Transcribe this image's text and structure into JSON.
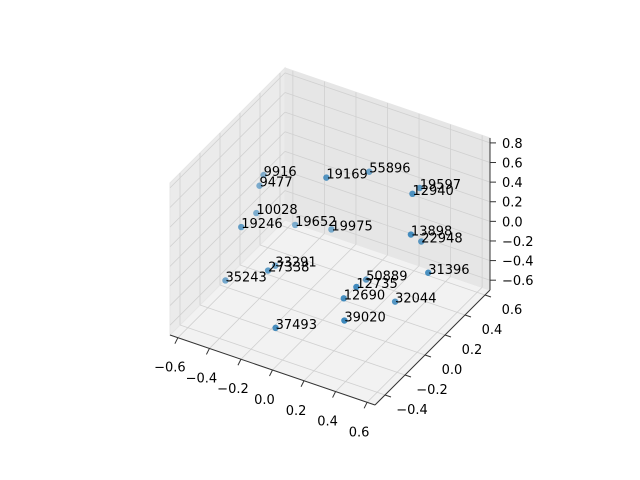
{
  "chart_data": {
    "type": "scatter3d",
    "labels": [
      "9916",
      "9477",
      "10028",
      "19246",
      "19652",
      "19975",
      "19169",
      "55896",
      "19597",
      "12940",
      "13898",
      "22948",
      "31396",
      "33291",
      "27338",
      "35243",
      "50889",
      "12735",
      "12690",
      "32044",
      "39020",
      "37493"
    ],
    "x": [
      -0.57,
      -0.52,
      -0.54,
      -0.42,
      -0.37,
      -0.21,
      0.05,
      0.03,
      0.35,
      0.45,
      0.51,
      0.36,
      0.55,
      -0.35,
      -0.25,
      -0.59,
      0.08,
      0.31,
      0.23,
      0.34,
      0.31,
      -0.05
    ],
    "y": [
      0.31,
      0.19,
      0.19,
      -0.15,
      0.31,
      0.42,
      -0.04,
      0.42,
      0.42,
      0.19,
      0.08,
      0.42,
      0.19,
      0.08,
      -0.15,
      -0.04,
      0.31,
      -0.15,
      -0.15,
      0.19,
      -0.27,
      -0.39
    ],
    "z": [
      0.15,
      0.19,
      -0.1,
      0.17,
      -0.25,
      -0.32,
      0.82,
      0.4,
      0.41,
      0.64,
      0.37,
      -0.13,
      -0.11,
      -0.42,
      -0.18,
      -0.58,
      -0.56,
      -0.04,
      -0.2,
      -0.52,
      -0.26,
      -0.41
    ],
    "color": "#1f77b4",
    "xlim": [
      -0.65,
      0.65
    ],
    "xticks": [
      {
        "value": -0.6,
        "label": "−0.6"
      },
      {
        "value": -0.4,
        "label": "−0.4"
      },
      {
        "value": -0.2,
        "label": "−0.2"
      },
      {
        "value": 0,
        "label": "0.0"
      },
      0.2,
      0.4,
      0.6
    ],
    "ylim": [
      -0.5,
      0.65
    ],
    "yticks": [
      {
        "value": -0.4,
        "label": "−0.4"
      },
      {
        "value": -0.2,
        "label": "−0.2"
      },
      {
        "value": 0,
        "label": "0.0"
      },
      0.2,
      0.4,
      0.6
    ],
    "zlim": [
      -0.7,
      0.85
    ],
    "zticks": [
      {
        "value": -0.6,
        "label": "−0.6"
      },
      {
        "value": -0.4,
        "label": "−0.4"
      },
      {
        "value": -0.2,
        "label": "−0.2"
      },
      {
        "value": 0,
        "label": "0.0"
      },
      0.2,
      0.4,
      0.6,
      0.8
    ],
    "grid": true
  }
}
